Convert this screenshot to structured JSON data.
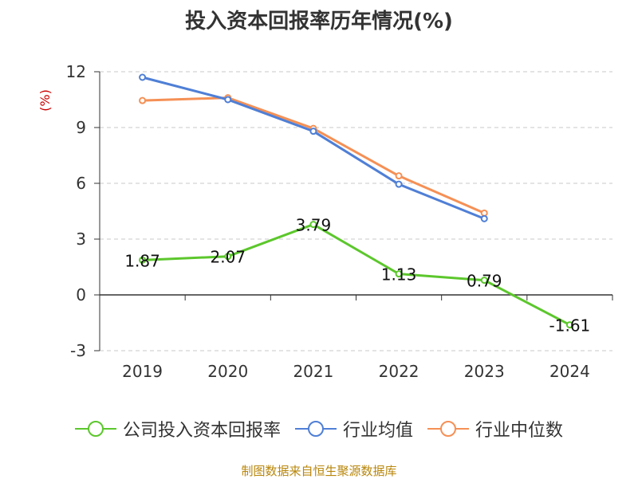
{
  "title": "投入资本回报率历年情况(%)",
  "source": "制图数据来自恒生聚源数据库",
  "chart_data": {
    "type": "line",
    "categories": [
      "2019",
      "2020",
      "2021",
      "2022",
      "2023",
      "2024"
    ],
    "ylabel": "(%)",
    "ylim": [
      -3,
      12
    ],
    "yticks": [
      -3,
      0,
      3,
      6,
      9,
      12
    ],
    "grid": true,
    "legend_position": "bottom",
    "series": [
      {
        "name": "公司投入资本回报率",
        "color": "#5cc72c",
        "values": [
          1.87,
          2.07,
          3.79,
          1.13,
          0.79,
          -1.61
        ],
        "labels": [
          "1.87",
          "2.07",
          "3.79",
          "1.13",
          "0.79",
          "-1.61"
        ]
      },
      {
        "name": "行业均值",
        "color": "#4f7fd6",
        "values": [
          11.7,
          10.5,
          8.8,
          5.95,
          4.1,
          null
        ]
      },
      {
        "name": "行业中位数",
        "color": "#f59055",
        "values": [
          10.45,
          10.6,
          8.95,
          6.4,
          4.4,
          null
        ]
      }
    ]
  }
}
